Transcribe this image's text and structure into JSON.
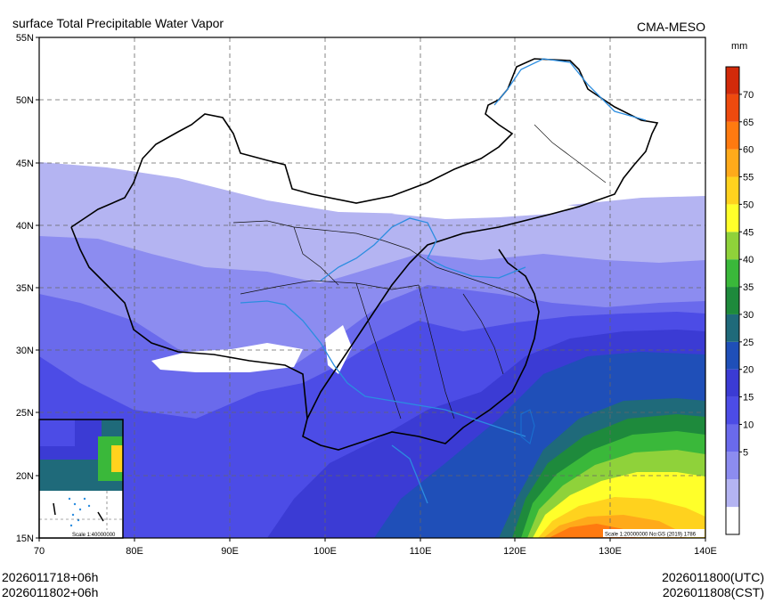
{
  "header": {
    "title": "surface Total Precipitable Water Vapor",
    "source": "CMA-MESO"
  },
  "map": {
    "lat_labels": [
      "55N",
      "50N",
      "45N",
      "40N",
      "35N",
      "30N",
      "25N",
      "20N",
      "15N"
    ],
    "lon_labels": [
      "70",
      "80E",
      "90E",
      "100E",
      "110E",
      "120E",
      "130E",
      "140E"
    ],
    "scale_main": "Scale 1:20000000 No:GS (2019) 1786",
    "scale_inset": "Scale 1:40000000"
  },
  "colorbar": {
    "unit": "mm",
    "labels": [
      "70",
      "65",
      "60",
      "55",
      "50",
      "45",
      "40",
      "35",
      "30",
      "25",
      "20",
      "15",
      "10",
      "5"
    ],
    "colors": [
      "#ffffff",
      "#b4b4f2",
      "#8c8cf0",
      "#6a6aec",
      "#4c4ce6",
      "#3b3bd4",
      "#1f4fb8",
      "#1f6a7a",
      "#1e8a3c",
      "#3ab83a",
      "#8fd23a",
      "#ffff2a",
      "#ffd21e",
      "#ffaa1a",
      "#ff7a10",
      "#ee4a0e",
      "#d22a0a"
    ]
  },
  "footer": {
    "init_time": "2026011718+06h",
    "local_time": "2026011802+06h",
    "utc_valid": "2026011800(UTC)",
    "cst_valid": "2026011808(CST)"
  }
}
